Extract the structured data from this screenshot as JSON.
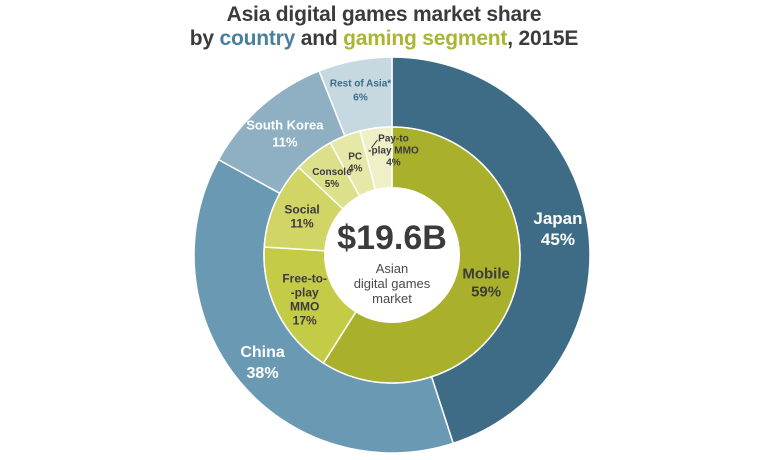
{
  "title": {
    "line1": "Asia digital games market share",
    "line2_prefix": "by ",
    "line2_country": "country",
    "line2_middle": " and ",
    "line2_segment": "gaming segment",
    "line2_suffix": ", 2015E",
    "country_color": "#4a7f9c",
    "segment_color": "#a9b533"
  },
  "center": {
    "value": "$19.6B",
    "caption_lines": [
      "Asian",
      "digital games",
      "market"
    ]
  },
  "colors": {
    "ring_background": "#ffffff",
    "leader_line": "#3b3b3b"
  },
  "chart_data": [
    {
      "type": "pie",
      "ring": "outer",
      "dimension": "country",
      "categories": [
        "Japan",
        "China",
        "South Korea",
        "Rest of Asia*"
      ],
      "values": [
        45,
        38,
        11,
        6
      ],
      "labels": [
        "Japan",
        "China",
        "South Korea",
        "Rest of Asia*"
      ],
      "value_labels": [
        "45%",
        "38%",
        "11%",
        "6%"
      ],
      "colors": [
        "#3e6c86",
        "#6a9ab3",
        "#8fb0c2",
        "#c6d8e0"
      ],
      "label_colors": [
        "#ffffff",
        "#ffffff",
        "#ffffff",
        "#3e6c86"
      ]
    },
    {
      "type": "pie",
      "ring": "inner",
      "dimension": "gaming segment",
      "categories": [
        "Mobile",
        "Free-to-play MMO",
        "Social",
        "Console",
        "PC",
        "Pay-to-play MMO"
      ],
      "values": [
        59,
        17,
        11,
        5,
        4,
        4
      ],
      "labels": [
        "Mobile",
        "Free-to-\n-play\nMMO",
        "Social",
        "Console",
        "PC",
        "Pay-to\n-play MMO"
      ],
      "value_labels": [
        "59%",
        "17%",
        "11%",
        "5%",
        "4%",
        "4%"
      ],
      "colors": [
        "#a9b02c",
        "#c4cb46",
        "#d0d566",
        "#dde08a",
        "#e6e8a8",
        "#eff0c8"
      ],
      "label_colors": [
        "#3b3b3b",
        "#3b3b3b",
        "#3b3b3b",
        "#3b3b3b",
        "#3b3b3b",
        "#3b3b3b"
      ]
    }
  ]
}
